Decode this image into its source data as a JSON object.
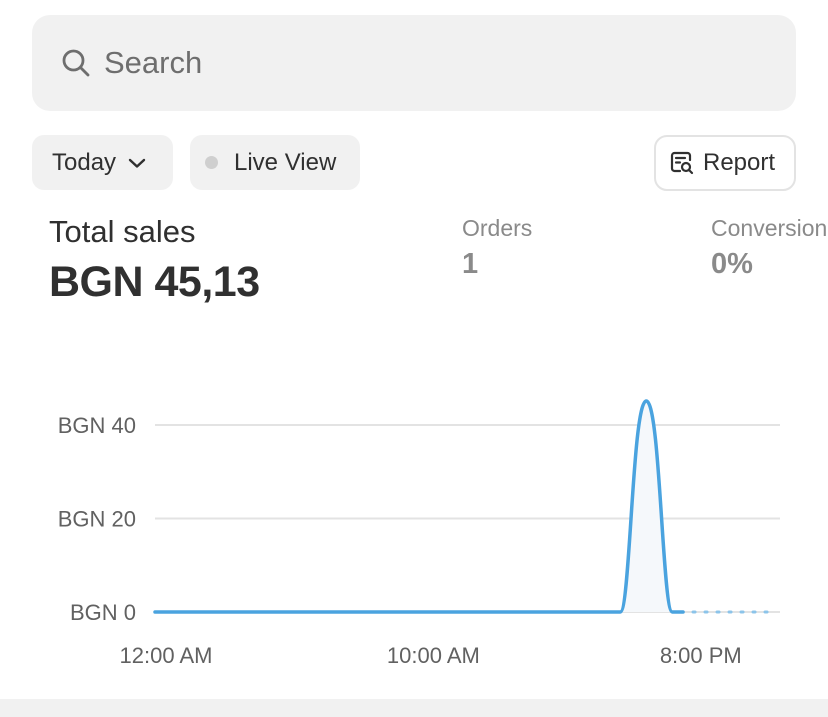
{
  "search": {
    "placeholder": "Search"
  },
  "toolbar": {
    "date_label": "Today",
    "live_label": "Live View",
    "report_label": "Report"
  },
  "metrics": {
    "total_sales": {
      "label": "Total sales",
      "value": "BGN 45,13"
    },
    "orders": {
      "label": "Orders",
      "value": "1"
    },
    "conversion": {
      "label": "Conversion",
      "value": "0%"
    }
  },
  "colors": {
    "line": "#4aa3df",
    "grid": "#e3e3e3",
    "muted_text": "#8a8a8a"
  },
  "icons": {
    "search": "search-icon",
    "date_dropdown": "chevron-down-icon",
    "live": "status-dot-icon",
    "report": "report-icon"
  },
  "chart_data": {
    "type": "line",
    "x": [
      "12:00 AM",
      "1:00 AM",
      "2:00 AM",
      "3:00 AM",
      "4:00 AM",
      "5:00 AM",
      "6:00 AM",
      "7:00 AM",
      "8:00 AM",
      "9:00 AM",
      "10:00 AM",
      "11:00 AM",
      "12:00 PM",
      "1:00 PM",
      "2:00 PM",
      "3:00 PM",
      "4:00 PM",
      "5:00 PM",
      "6:00 PM",
      "7:00 PM",
      "8:00 PM",
      "9:00 PM",
      "10:00 PM",
      "11:00 PM"
    ],
    "x_tick_labels": [
      "12:00 AM",
      "10:00 AM",
      "8:00 PM"
    ],
    "series": [
      {
        "values": [
          0,
          0,
          0,
          0,
          0,
          0,
          0,
          0,
          0,
          0,
          0,
          0,
          0,
          0,
          0,
          0,
          0,
          0,
          45.13,
          0,
          null,
          null,
          null,
          null
        ]
      }
    ],
    "y_ticks": [
      "BGN 0",
      "BGN 20",
      "BGN 40"
    ],
    "ylim": [
      0,
      40
    ],
    "grid": true,
    "xlabel": "",
    "ylabel": ""
  }
}
